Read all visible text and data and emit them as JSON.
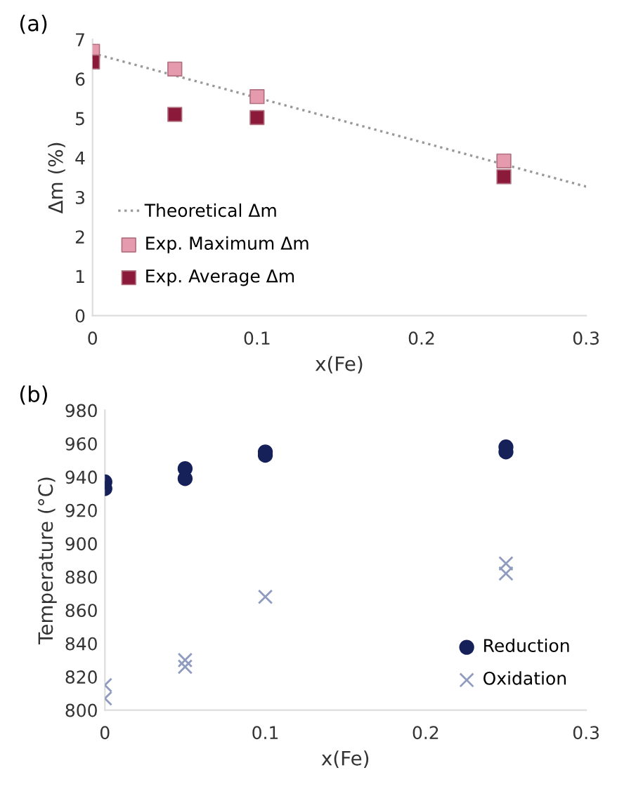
{
  "chart_data": [
    {
      "type": "scatter",
      "title": "(a)",
      "xlabel": "x(Fe)",
      "ylabel": "Δm (%)",
      "xlim": [
        0,
        0.3
      ],
      "xticks": [
        0,
        0.1,
        0.2,
        0.3
      ],
      "ylim": [
        0,
        7
      ],
      "yticks": [
        0,
        1,
        2,
        3,
        4,
        5,
        6,
        7
      ],
      "grid": false,
      "legend": "bottom left",
      "series": [
        {
          "name": "Theoretical Δm",
          "type": "line",
          "color": "#999999",
          "marker": "none",
          "line_style": "dotted",
          "x": [
            0,
            0.3
          ],
          "values": [
            6.65,
            3.27
          ]
        },
        {
          "name": "Exp. Maximum Δm",
          "color": "#e59aae",
          "marker": "square",
          "x": [
            0,
            0.05,
            0.1,
            0.25
          ],
          "values": [
            6.7,
            6.25,
            5.55,
            3.92
          ]
        },
        {
          "name": "Exp. Average Δm",
          "color": "#8b1a3a",
          "marker": "square",
          "x": [
            0,
            0.05,
            0.1,
            0.25
          ],
          "values": [
            6.43,
            5.1,
            5.02,
            3.52
          ]
        }
      ]
    },
    {
      "type": "scatter",
      "title": "(b)",
      "xlabel": "x(Fe)",
      "ylabel": "Temperature (°C)",
      "xlim": [
        0,
        0.3
      ],
      "xticks": [
        0,
        0.1,
        0.2,
        0.3
      ],
      "ylim": [
        800,
        980
      ],
      "yticks": [
        800,
        820,
        840,
        860,
        880,
        900,
        920,
        940,
        960,
        980
      ],
      "grid": false,
      "legend": "bottom right",
      "series": [
        {
          "name": "Reduction",
          "color": "#16215a",
          "marker": "circle",
          "x": [
            0,
            0,
            0.05,
            0.05,
            0.1,
            0.1,
            0.25,
            0.25
          ],
          "values": [
            937,
            933,
            945,
            939,
            955,
            953,
            958,
            955
          ]
        },
        {
          "name": "Oxidation",
          "color": "#8f9bbf",
          "marker": "cross",
          "x": [
            0,
            0,
            0.05,
            0.05,
            0.1,
            0.25,
            0.25
          ],
          "values": [
            815,
            807,
            830,
            826,
            868,
            888,
            882
          ]
        }
      ]
    }
  ]
}
